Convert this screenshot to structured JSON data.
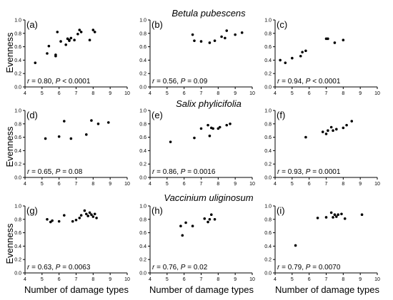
{
  "row_titles": [
    "Betula pubescens",
    "Salix phylicifolia",
    "Vaccinium uliginosum"
  ],
  "ylabel": "Evenness",
  "xlabel": "Number of damage types",
  "chart_data": [
    {
      "type": "scatter",
      "panel": "(a)",
      "r_value": "0.80",
      "p_value": "< 0.0001",
      "xlim": [
        4,
        10
      ],
      "ylim": [
        0,
        1
      ],
      "x": [
        4.6,
        5.3,
        5.4,
        5.8,
        5.8,
        5.9,
        6.1,
        6.4,
        6.5,
        6.6,
        6.6,
        6.7,
        6.9,
        7.1,
        7.2,
        7.3,
        7.8,
        8.0,
        8.1
      ],
      "y": [
        0.36,
        0.5,
        0.61,
        0.46,
        0.48,
        0.82,
        0.68,
        0.63,
        0.72,
        0.7,
        0.69,
        0.73,
        0.7,
        0.79,
        0.85,
        0.82,
        0.7,
        0.85,
        0.82
      ]
    },
    {
      "type": "scatter",
      "panel": "(b)",
      "r_value": "0.56",
      "p_value": "0.09",
      "xlim": [
        4,
        10
      ],
      "ylim": [
        0,
        1
      ],
      "x": [
        6.5,
        6.6,
        7.0,
        7.5,
        7.8,
        8.2,
        8.4,
        8.5,
        9.0,
        9.4
      ],
      "y": [
        0.78,
        0.69,
        0.68,
        0.66,
        0.69,
        0.75,
        0.73,
        0.84,
        0.78,
        0.81
      ]
    },
    {
      "type": "scatter",
      "panel": "(c)",
      "r_value": "0.94",
      "p_value": "< 0.0001",
      "xlim": [
        4,
        10
      ],
      "ylim": [
        0,
        1
      ],
      "x": [
        4.3,
        4.6,
        5.0,
        5.5,
        5.6,
        5.8,
        7.0,
        7.1,
        7.5,
        8.0
      ],
      "y": [
        0.4,
        0.36,
        0.43,
        0.46,
        0.52,
        0.54,
        0.72,
        0.72,
        0.66,
        0.7
      ]
    },
    {
      "type": "scatter",
      "panel": "(d)",
      "r_value": "0.65",
      "p_value": "0.08",
      "xlim": [
        4,
        10
      ],
      "ylim": [
        0,
        1
      ],
      "x": [
        5.2,
        6.0,
        6.3,
        6.7,
        7.6,
        7.9,
        8.3,
        8.9
      ],
      "y": [
        0.58,
        0.61,
        0.84,
        0.58,
        0.64,
        0.85,
        0.8,
        0.82
      ]
    },
    {
      "type": "scatter",
      "panel": "(e)",
      "r_value": "0.86",
      "p_value": "0.0016",
      "xlim": [
        4,
        10
      ],
      "ylim": [
        0,
        1
      ],
      "x": [
        5.2,
        6.6,
        7.0,
        7.4,
        7.5,
        7.6,
        7.7,
        8.0,
        8.1,
        8.5,
        8.7
      ],
      "y": [
        0.53,
        0.59,
        0.73,
        0.78,
        0.62,
        0.74,
        0.73,
        0.73,
        0.75,
        0.78,
        0.8
      ]
    },
    {
      "type": "scatter",
      "panel": "(f)",
      "r_value": "0.93",
      "p_value": "0.0001",
      "xlim": [
        4,
        10
      ],
      "ylim": [
        0,
        1
      ],
      "x": [
        5.8,
        6.8,
        7.0,
        7.1,
        7.3,
        7.4,
        7.6,
        8.0,
        8.2,
        8.5
      ],
      "y": [
        0.6,
        0.68,
        0.65,
        0.7,
        0.75,
        0.7,
        0.72,
        0.74,
        0.78,
        0.84
      ]
    },
    {
      "type": "scatter",
      "panel": "(g)",
      "r_value": "0.63",
      "p_value": "= 0.0063",
      "xlim": [
        4,
        10
      ],
      "ylim": [
        0,
        1
      ],
      "x": [
        5.3,
        5.5,
        5.6,
        6.0,
        6.3,
        6.8,
        7.0,
        7.2,
        7.3,
        7.5,
        7.6,
        7.7,
        7.8,
        7.9,
        8.0,
        8.1,
        8.2
      ],
      "y": [
        0.8,
        0.76,
        0.78,
        0.77,
        0.86,
        0.77,
        0.79,
        0.82,
        0.86,
        0.93,
        0.88,
        0.85,
        0.9,
        0.87,
        0.84,
        0.88,
        0.82
      ]
    },
    {
      "type": "scatter",
      "panel": "(h)",
      "r_value": "0.76",
      "p_value": "0.02",
      "xlim": [
        4,
        10
      ],
      "ylim": [
        0,
        1
      ],
      "x": [
        5.8,
        5.9,
        6.1,
        6.5,
        7.2,
        7.4,
        7.5,
        7.6,
        7.8
      ],
      "y": [
        0.7,
        0.56,
        0.75,
        0.7,
        0.81,
        0.76,
        0.8,
        0.87,
        0.8
      ]
    },
    {
      "type": "scatter",
      "panel": "(i)",
      "r_value": "0.79",
      "p_value": "0.0070",
      "xlim": [
        4,
        10
      ],
      "ylim": [
        0,
        1
      ],
      "x": [
        5.2,
        6.5,
        7.0,
        7.3,
        7.4,
        7.5,
        7.6,
        7.7,
        7.9,
        8.1,
        9.1
      ],
      "y": [
        0.41,
        0.82,
        0.83,
        0.9,
        0.83,
        0.87,
        0.84,
        0.87,
        0.88,
        0.81,
        0.87
      ]
    }
  ]
}
